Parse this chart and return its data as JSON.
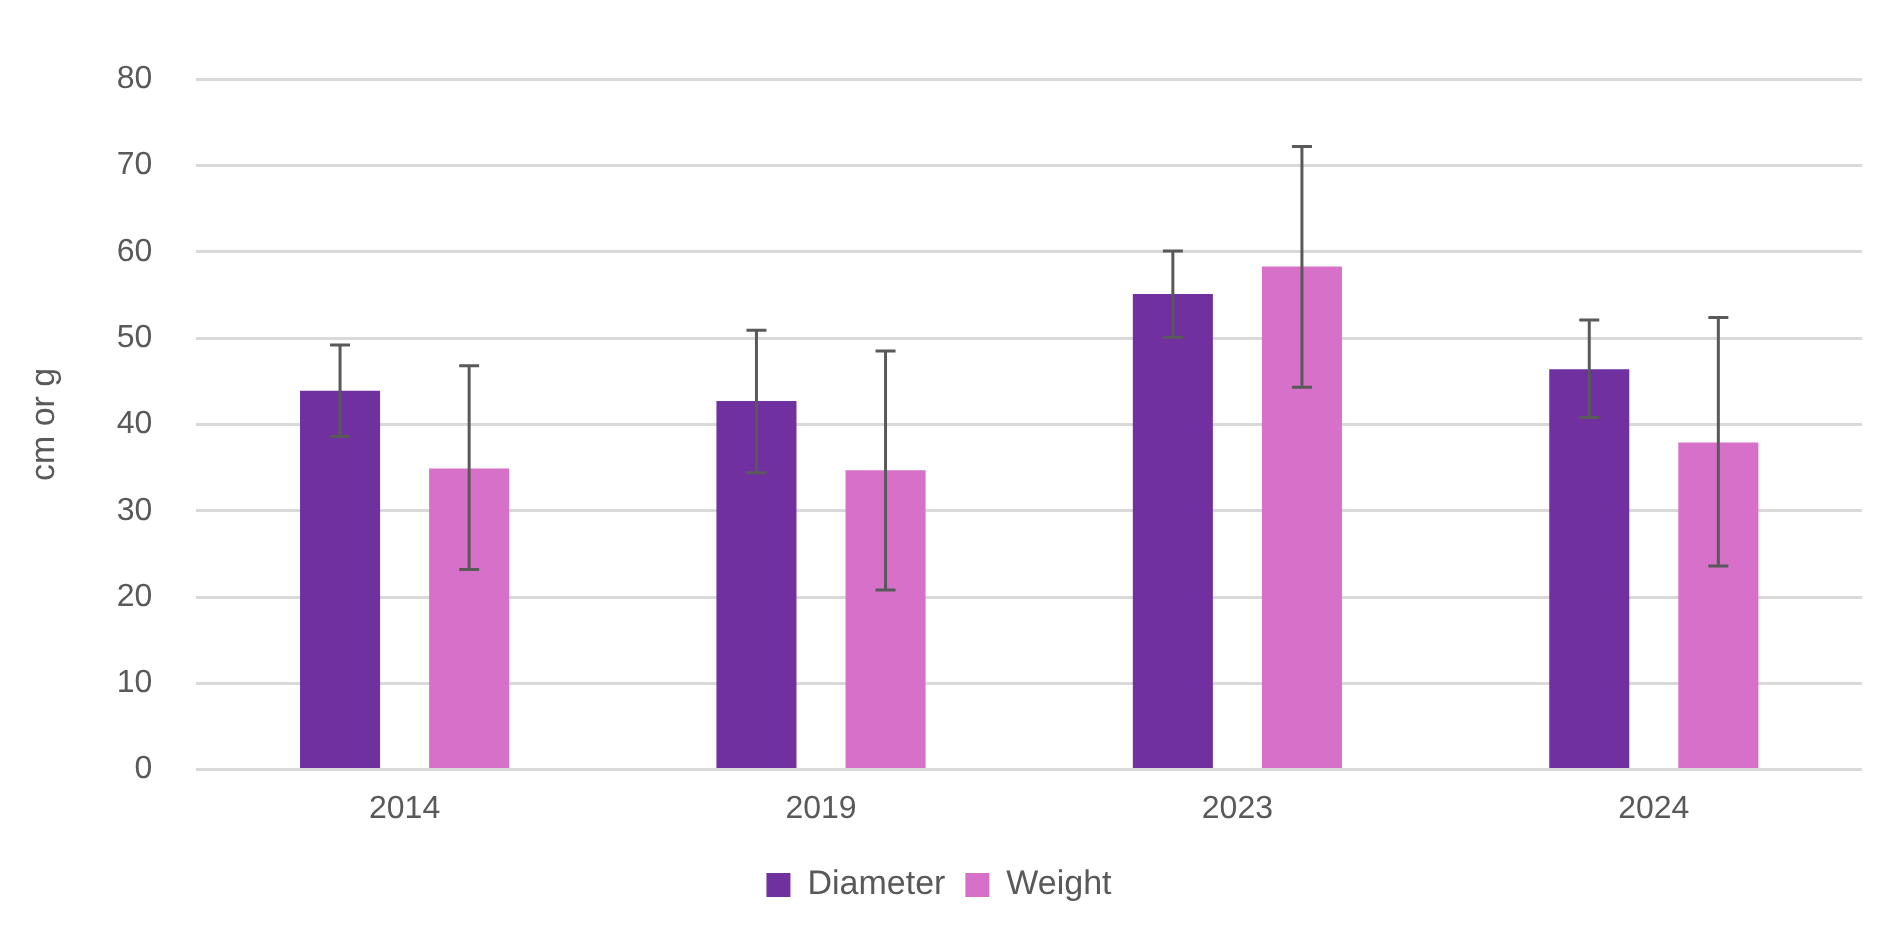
{
  "chart_data": {
    "type": "bar",
    "ylabel": "cm or g",
    "categories": [
      "2014",
      "2019",
      "2023",
      "2024"
    ],
    "series": [
      {
        "name": "Diameter",
        "color": "#7030a0",
        "values": [
          43.9,
          42.7,
          55.1,
          46.4
        ],
        "errors": [
          [
            38.6,
            49.2
          ],
          [
            34.4,
            50.9
          ],
          [
            50.1,
            60.1
          ],
          [
            40.8,
            52.1
          ]
        ]
      },
      {
        "name": "Weight",
        "color": "#d670c8",
        "values": [
          34.9,
          34.7,
          58.3,
          37.9
        ],
        "errors": [
          [
            23.2,
            46.8
          ],
          [
            20.8,
            48.5
          ],
          [
            44.3,
            72.2
          ],
          [
            23.6,
            52.4
          ]
        ]
      }
    ],
    "ylim": [
      0,
      80
    ],
    "yticks": [
      0,
      10,
      20,
      30,
      40,
      50,
      60,
      70,
      80
    ],
    "grid": "y",
    "legend": "bottom"
  }
}
